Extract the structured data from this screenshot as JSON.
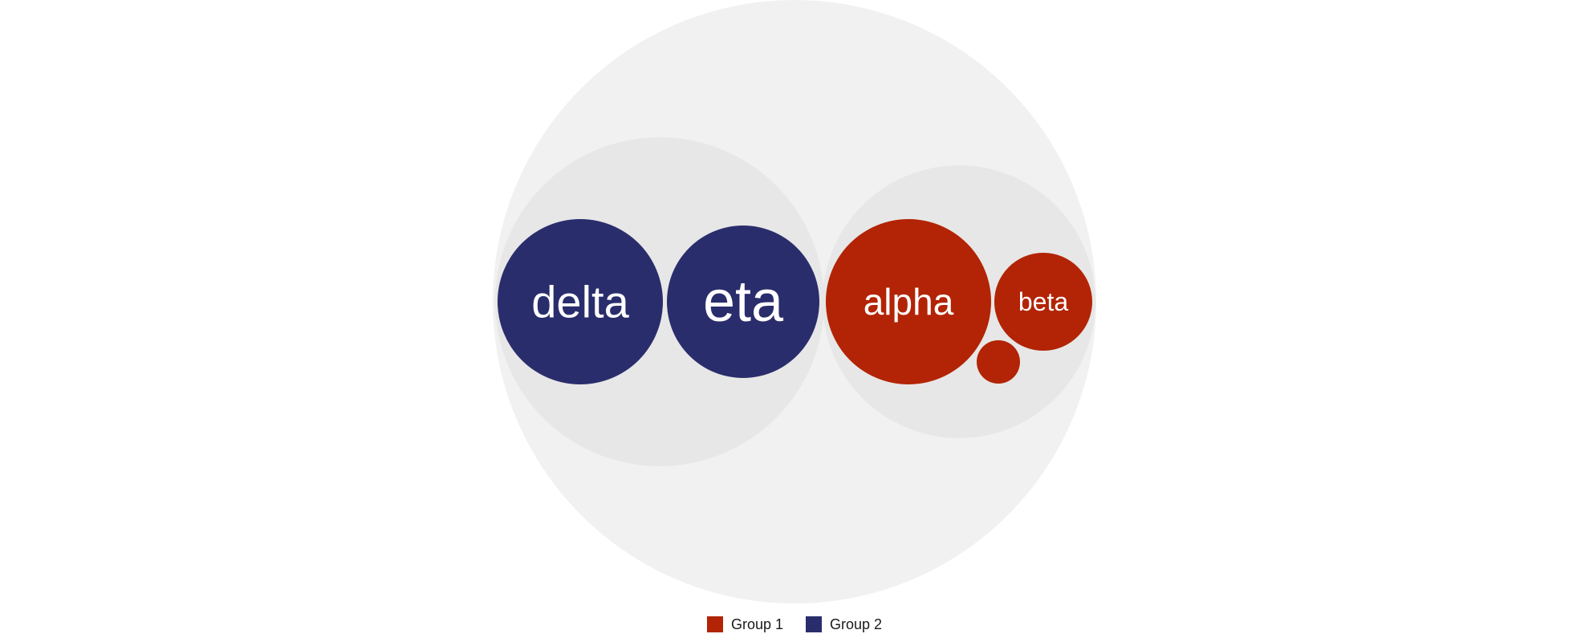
{
  "chart_data": {
    "type": "packed-bubble",
    "groups": [
      {
        "name": "Group 1",
        "color": "#b22405",
        "items": [
          {
            "label": "alpha",
            "value": 100
          },
          {
            "label": "beta",
            "value": 35
          },
          {
            "label": "",
            "value": 7
          }
        ]
      },
      {
        "name": "Group 2",
        "color": "#2a2d6c",
        "items": [
          {
            "label": "delta",
            "value": 100
          },
          {
            "label": "eta",
            "value": 86
          }
        ]
      }
    ],
    "colors": {
      "outer_background": "#f1f1f1",
      "group_background": "#e7e7e7",
      "label": "#ffffff"
    },
    "legend": {
      "position": "bottom-center",
      "items": [
        {
          "label": "Group 1",
          "color": "#b22405"
        },
        {
          "label": "Group 2",
          "color": "#2a2d6c"
        }
      ]
    }
  }
}
